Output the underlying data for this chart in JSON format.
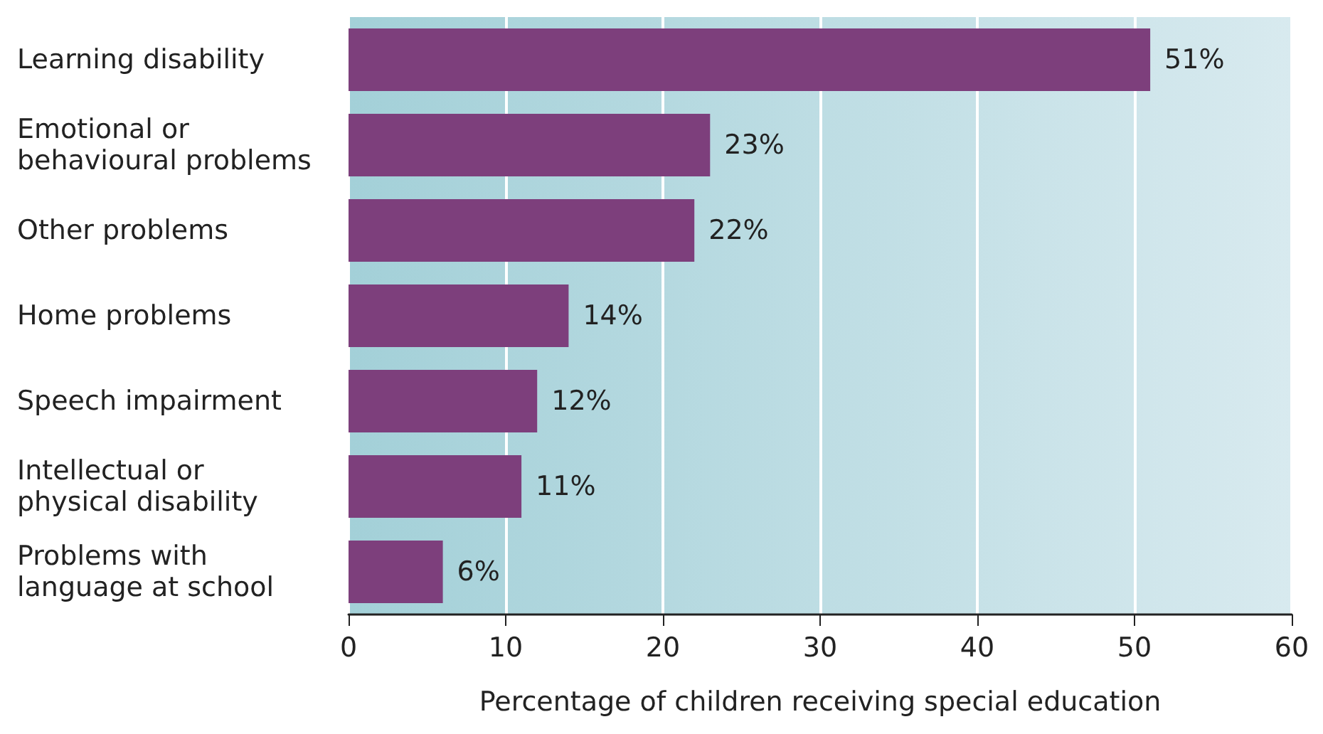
{
  "chart_data": {
    "type": "bar",
    "orientation": "horizontal",
    "xlabel": "Percentage of children receiving special education",
    "categories": [
      "Learning disability",
      "Emotional or behavioural problems",
      "Other problems",
      "Home problems",
      "Speech impairment",
      "Intellectual or physical disability",
      "Problems with language at school"
    ],
    "values": [
      51,
      23,
      22,
      14,
      12,
      11,
      6
    ],
    "value_labels": [
      "51%",
      "23%",
      "22%",
      "14%",
      "12%",
      "11%",
      "6%"
    ],
    "color": "#7d3f7c",
    "xlim": [
      0,
      60
    ],
    "xticks": [
      0,
      10,
      20,
      30,
      40,
      50,
      60
    ],
    "grid": "x"
  }
}
